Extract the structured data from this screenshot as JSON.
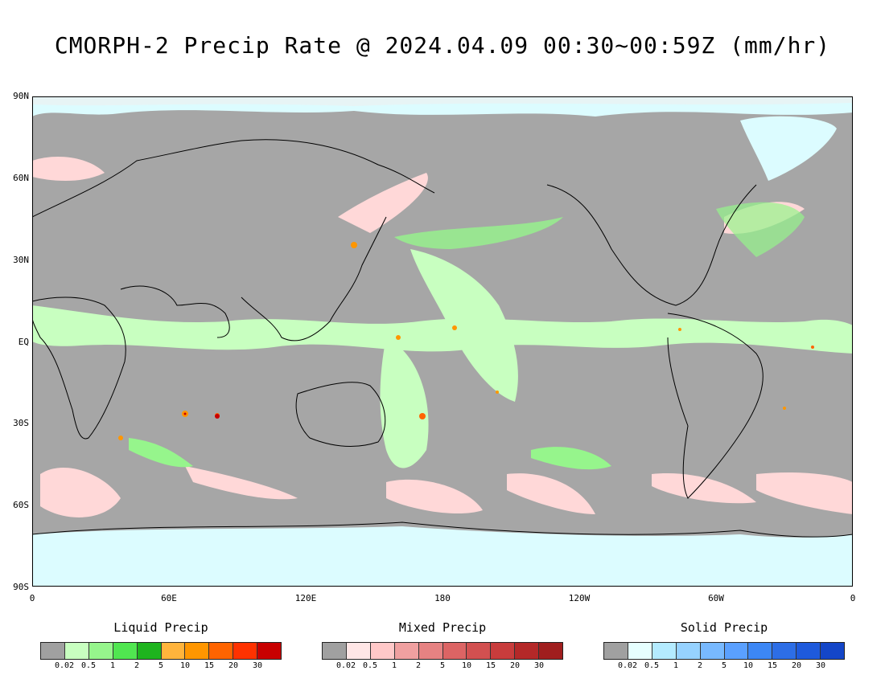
{
  "title": "CMORPH-2 Precip Rate @ 2024.04.09 00:30~00:59Z (mm/hr)",
  "lat_labels": [
    "90N",
    "60N",
    "30N",
    "EQ",
    "30S",
    "60S",
    "90S"
  ],
  "lon_labels": [
    "0",
    "60E",
    "120E",
    "180",
    "120W",
    "60W",
    "0"
  ],
  "legends": [
    {
      "title": "Liquid Precip",
      "colors": [
        "#a0a0a0",
        "#c8ffc0",
        "#96f58c",
        "#50e650",
        "#1eb41e",
        "#ffb43c",
        "#ff9600",
        "#ff6400",
        "#ff3200",
        "#c80000"
      ],
      "ticks": [
        "0.02",
        "0.5",
        "1",
        "2",
        "5",
        "10",
        "15",
        "20",
        "30"
      ]
    },
    {
      "title": "Mixed Precip",
      "colors": [
        "#a0a0a0",
        "#ffe6e6",
        "#ffc8c8",
        "#f0a0a0",
        "#e68282",
        "#dc6464",
        "#d25050",
        "#c83c3c",
        "#b42828",
        "#a01e1e"
      ],
      "ticks": [
        "0.02",
        "0.5",
        "1",
        "2",
        "5",
        "10",
        "15",
        "20",
        "30"
      ]
    },
    {
      "title": "Solid Precip",
      "colors": [
        "#a0a0a0",
        "#e6ffff",
        "#b4ebff",
        "#96d2ff",
        "#78b9ff",
        "#5aa0ff",
        "#3c87f5",
        "#2d6ee6",
        "#1e5adc",
        "#1446c8"
      ],
      "ticks": [
        "0.02",
        "0.5",
        "1",
        "2",
        "5",
        "10",
        "15",
        "20",
        "30"
      ]
    }
  ],
  "colors": {
    "no_precip": "#a6a6a6",
    "liquid_light": "#c8ffc0",
    "liquid_mid": "#96f58c",
    "mixed_light": "#ffd8d8",
    "solid_light": "#dcfcff",
    "coastline": "#000000"
  }
}
